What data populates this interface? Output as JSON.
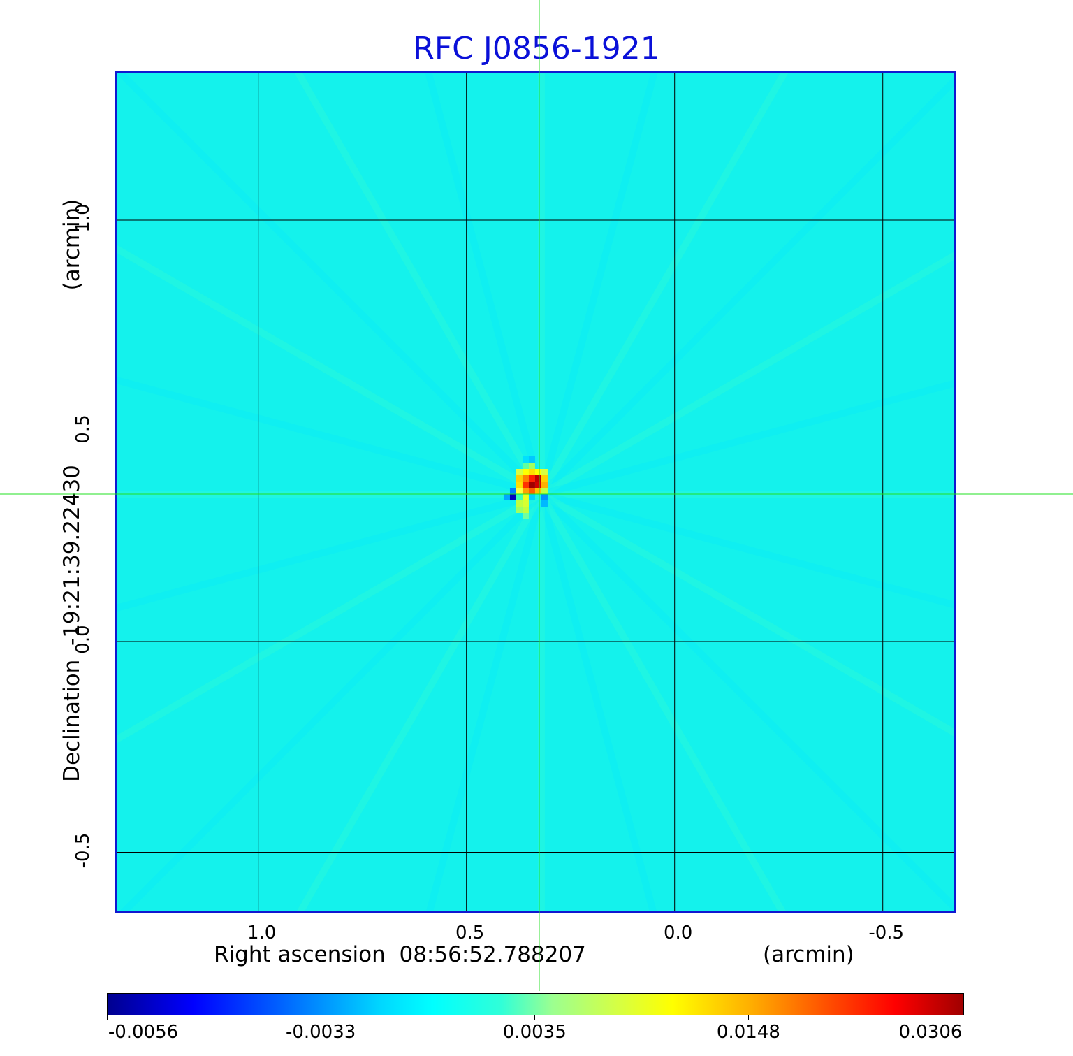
{
  "chart_data": {
    "type": "heatmap",
    "title": "RFC J0856-1921",
    "xlabel": "Right ascension  08:56:52.788207",
    "xunit": "(arcmin)",
    "ylabel": "Declination  -19:21:39.22430",
    "yunit": "(arcmin)",
    "xlim": [
      1.34,
      -0.68
    ],
    "ylim": [
      -0.65,
      1.35
    ],
    "x_ticks": [
      "1.0",
      "0.5",
      "0.0",
      "-0.5"
    ],
    "x_tick_values": [
      1.0,
      0.5,
      0.0,
      -0.5
    ],
    "y_ticks": [
      "1.0",
      "0.5",
      "0.0",
      "-0.5"
    ],
    "y_tick_values": [
      1.0,
      0.5,
      0.0,
      -0.5
    ],
    "grid": true,
    "colormap": "jet",
    "colorbar": {
      "labels": [
        "-0.0056",
        "-0.0033",
        "0.0035",
        "0.0148",
        "0.0306"
      ],
      "min": -0.0056,
      "max": 0.0306,
      "position": "bottom"
    },
    "peak": {
      "x": 0.32,
      "y": 0.35,
      "value": 0.0306
    },
    "crosshair": {
      "x": 0.32,
      "y": 0.345
    }
  }
}
